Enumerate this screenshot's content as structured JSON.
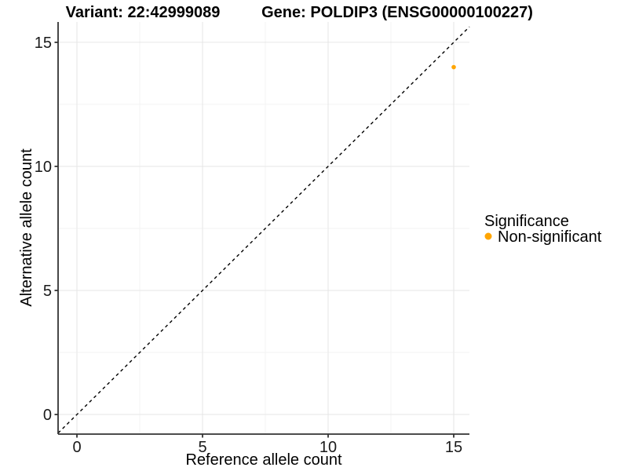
{
  "header": {
    "variant_title": "Variant: 22:42999089",
    "gene_title": "Gene: POLDIP3 (ENSG00000100227)"
  },
  "chart_data": {
    "type": "scatter",
    "xlabel": "Reference allele count",
    "ylabel": "Alternative allele count",
    "xlim": [
      -0.75,
      15.625
    ],
    "ylim": [
      -0.79,
      15.82
    ],
    "xticks": [
      0,
      5,
      10,
      15
    ],
    "yticks": [
      0,
      5,
      10,
      15
    ],
    "xminor": [
      2.5,
      7.5,
      12.5
    ],
    "yminor": [
      2.5,
      7.5,
      12.5
    ],
    "grid": "major+minor",
    "points": [
      {
        "x": 15,
        "y": 14,
        "significance": "Non-significant"
      }
    ],
    "reference_line": {
      "type": "identity y=x",
      "style": "dashed",
      "color": "#000000"
    },
    "legend": {
      "title": "Significance",
      "position": "right",
      "entries": [
        {
          "label": "Non-significant",
          "color": "#FFA500"
        }
      ]
    }
  },
  "colors": {
    "background": "#FFFFFF",
    "axis": "#333333",
    "grid_major": "#E6E6E6",
    "grid_minor": "#F3F3F3",
    "tick_text": "#1A1A1A"
  }
}
